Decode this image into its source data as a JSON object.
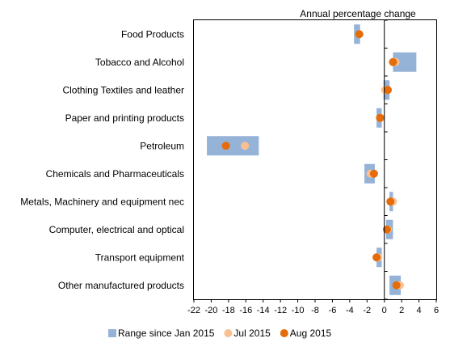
{
  "chart_data": {
    "type": "range-dot",
    "units_label": "Annual percentage change",
    "categories": [
      "Food Products",
      "Tobacco and Alcohol",
      "Clothing Textiles and leather",
      "Paper and printing products",
      "Petroleum",
      "Chemicals and Pharmaceuticals",
      "Metals, Machinery and equipment nec",
      "Computer, electrical and optical",
      "Transport equipment",
      "Other manufactured products"
    ],
    "xlim": [
      -22,
      6
    ],
    "xticks": [
      -22,
      -20,
      -18,
      -16,
      -14,
      -12,
      -10,
      -8,
      -6,
      -4,
      -2,
      0,
      2,
      4,
      6
    ],
    "series": [
      {
        "name": "Range since Jan 2015",
        "kind": "range",
        "color": "#95b3d7",
        "values": [
          [
            -3.5,
            -2.8
          ],
          [
            1.0,
            3.7
          ],
          [
            -0.1,
            0.6
          ],
          [
            -0.9,
            -0.3
          ],
          [
            -20.5,
            -14.5
          ],
          [
            -2.3,
            -1.1
          ],
          [
            0.6,
            1.0
          ],
          [
            0.2,
            1.0
          ],
          [
            -0.9,
            -0.3
          ],
          [
            0.6,
            1.9
          ]
        ]
      },
      {
        "name": "Jul 2015",
        "kind": "point",
        "color": "#fac090",
        "values": [
          -2.9,
          1.3,
          0.1,
          -0.4,
          -16.1,
          -1.6,
          1.0,
          0.4,
          -0.7,
          1.8
        ]
      },
      {
        "name": "Aug 2015",
        "kind": "point",
        "color": "#e46c0a",
        "values": [
          -2.9,
          1.0,
          0.4,
          -0.5,
          -18.3,
          -1.2,
          0.7,
          0.3,
          -0.9,
          1.4
        ]
      }
    ],
    "legend_position": "bottom",
    "grid": false
  }
}
